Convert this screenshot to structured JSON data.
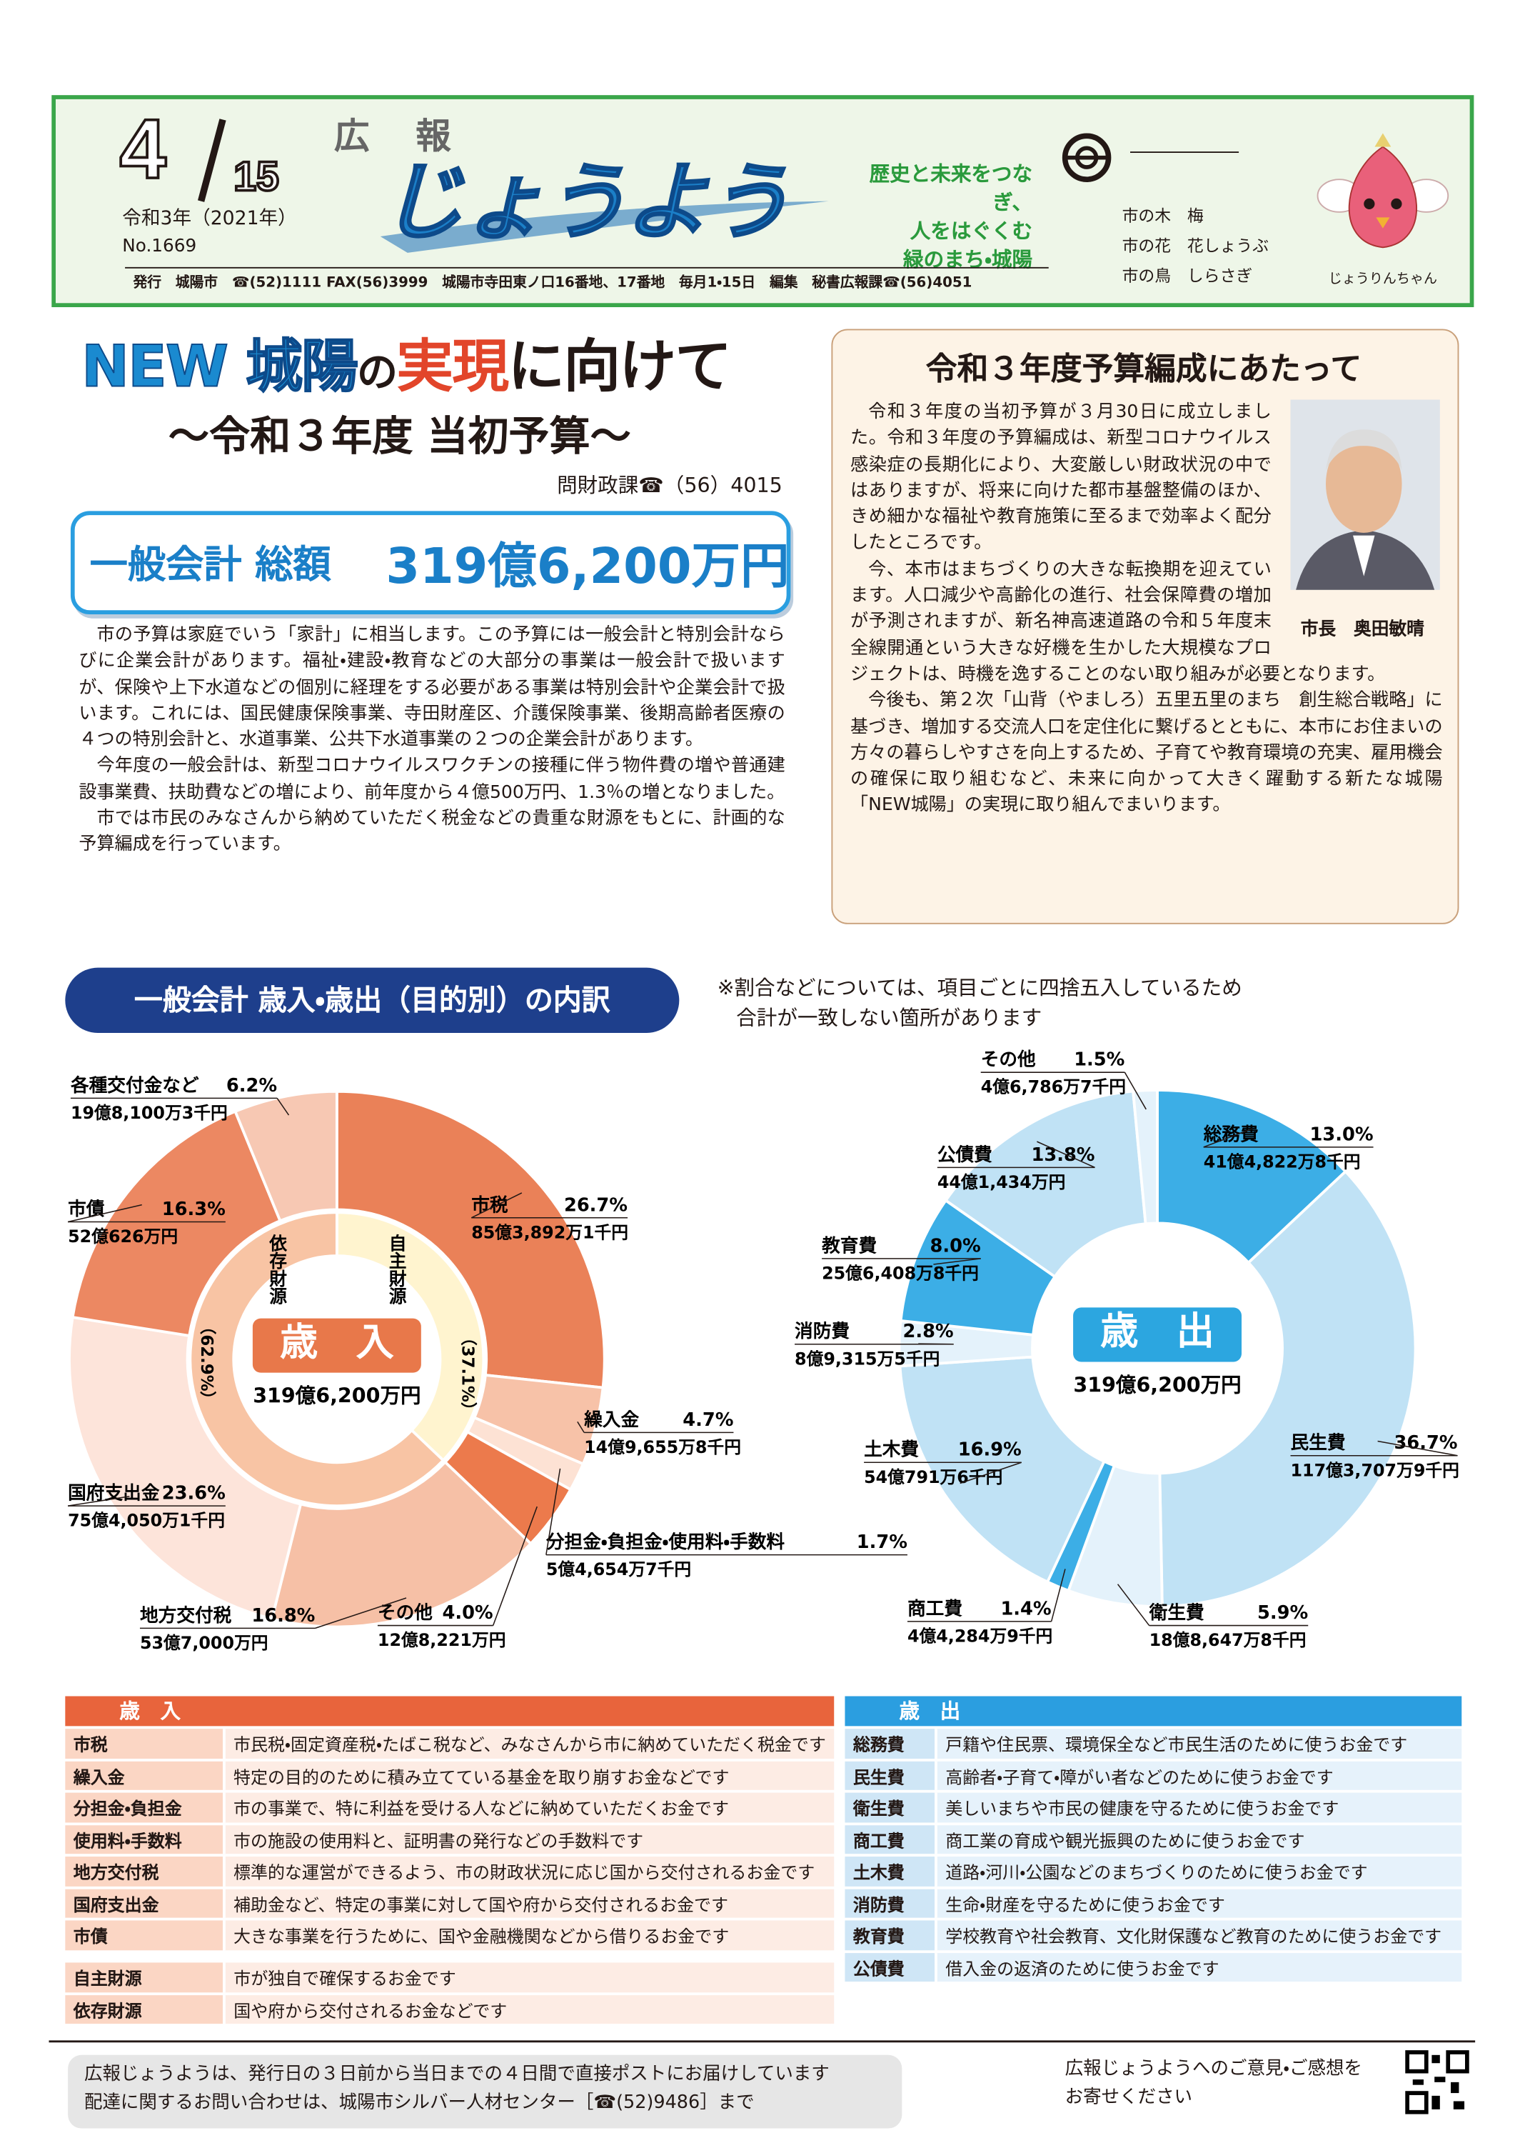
{
  "header": {
    "issue_month": "4",
    "issue_day": "15",
    "era_date": "令和3年（2021年）",
    "number": "No.1669",
    "kouhou": "広　報",
    "name": "じょうよう",
    "slogan": [
      "歴史と未来をつなぎ、",
      "人をはぐくむ",
      "緑のまち・城陽"
    ],
    "city_symbols": [
      "市の木　梅",
      "市の花　花しょうぶ",
      "市の鳥　しらさぎ"
    ],
    "mascot": "じょうりんちゃん",
    "publisher": "発行　城陽市　☎(52)1111 FAX(56)3999　城陽市寺田東ノ口16番地、17番地　毎月1・15日　編集　秘書広報課☎(56)4051"
  },
  "article": {
    "title_parts": [
      "NEW 城陽",
      "の",
      "実現",
      "に向けて"
    ],
    "subtitle": "～令和３年度 当初予算～",
    "contact": "問財政課☎（56）4015",
    "total_label": "一般会計 総額",
    "total_amount": "319億6,200万円",
    "paragraphs": [
      "市の予算は家庭でいう「家計」に相当します。この予算には一般会計と特別会計ならびに企業会計があります。福祉・建設・教育などの大部分の事業は一般会計で扱いますが、保険や上下水道などの個別に経理をする必要がある事業は特別会計や企業会計で扱います。これには、国民健康保険事業、寺田財産区、介護保険事業、後期高齢者医療の４つの特別会計と、水道事業、公共下水道事業の２つの企業会計があります。",
      "今年度の一般会計は、新型コロナウイルスワクチンの接種に伴う物件費の増や普通建設事業費、扶助費などの増により、前年度から４億500万円、1.3％の増となりました。",
      "市では市民のみなさんから納めていただく税金などの貴重な財源をもとに、計画的な予算編成を行っています。"
    ]
  },
  "message": {
    "title": "令和３年度予算編成にあたって",
    "mayor": "市長　奥田敏晴",
    "paragraphs": [
      "令和３年度の当初予算が３月30日に成立しました。令和３年度の予算編成は、新型コロナウイルス感染症の長期化により、大変厳しい財政状況の中ではありますが、将来に向けた都市基盤整備のほか、きめ細かな福祉や教育施策に至るまで効率よく配分したところです。",
      "今、本市はまちづくりの大きな転換期を迎えています。人口減少や高齢化の進行、社会保障費の増加が予測されますが、新名神高速道路の令和５年度末全線開通という大きな好機を生かした大規模なプロジェクトは、時機を逸することのない取り組みが必要となります。",
      "今後も、第２次「山背（やましろ）五里五里のまち　創生総合戦略」に基づき、増加する交流人口を定住化に繋げるとともに、本市にお住まいの方々の暮らしやすさを向上するため、子育てや教育環境の充実、雇用機会の確保に取り組むなど、未来に向かって大きく躍動する新たな城陽「NEW城陽」の実現に取り組んでまいります。"
    ]
  },
  "breakdown": {
    "heading": "一般会計 歳入・歳出（目的別）の内訳",
    "note": [
      "※割合などについては、項目ごとに四捨五入しているため",
      "合計が一致しない箇所があります"
    ]
  },
  "chart_data": [
    {
      "type": "donut",
      "center_label": "歳　入",
      "center_amount": "319億6,200万円",
      "categories": [
        "市税",
        "繰入金",
        "分担金・負担金・使用料・手数料",
        "その他",
        "地方交付税",
        "国府支出金",
        "市債",
        "各種交付金など"
      ],
      "values": [
        26.7,
        4.7,
        1.7,
        4.0,
        16.8,
        23.6,
        16.3,
        6.2
      ],
      "value_labels": [
        "26.7%",
        "4.7%",
        "1.7%",
        "4.0%",
        "16.8%",
        "23.6%",
        "16.3%",
        "6.2%"
      ],
      "amounts": [
        "85億3,892万1千円",
        "14億9,655万8千円",
        "5億4,654万7千円",
        "12億8,221万円",
        "53億7,000万円",
        "75億4,050万1千円",
        "52億626万円",
        "19億8,100万3千円"
      ],
      "colors": [
        "#ea8158",
        "#f7c2a8",
        "#fde2d4",
        "#ec7a4c",
        "#f6c0a6",
        "#fde4da",
        "#ec8862",
        "#f7c8b3"
      ],
      "inner_ring": {
        "categories": [
          "自主財源",
          "依存財源"
        ],
        "values": [
          37.1,
          62.9
        ],
        "value_labels": [
          "（37.1%）",
          "（62.9%）"
        ],
        "colors": [
          "#fff4cf",
          "#f8c4a4"
        ]
      }
    },
    {
      "type": "donut",
      "center_label": "歳　出",
      "center_amount": "319億6,200万円",
      "categories": [
        "総務費",
        "民生費",
        "衛生費",
        "商工費",
        "土木費",
        "消防費",
        "教育費",
        "公債費",
        "その他"
      ],
      "values": [
        13.0,
        36.7,
        5.9,
        1.4,
        16.9,
        2.8,
        8.0,
        13.8,
        1.5
      ],
      "value_labels": [
        "13.0%",
        "36.7%",
        "5.9%",
        "1.4%",
        "16.9%",
        "2.8%",
        "8.0%",
        "13.8%",
        "1.5%"
      ],
      "amounts": [
        "41億4,822万8千円",
        "117億3,707万9千円",
        "18億8,647万8千円",
        "4億4,284万9千円",
        "54億791万6千円",
        "8億9,315万5千円",
        "25億6,408万8千円",
        "44億1,434万円",
        "4億6,786万7千円"
      ],
      "colors": [
        "#3caee6",
        "#c0e2f5",
        "#e4f2fb",
        "#3caee6",
        "#c0e2f5",
        "#e4f2fb",
        "#3caee6",
        "#c0e2f5",
        "#e4f2fb"
      ]
    }
  ],
  "revenue_glossary": {
    "heading": "歳　入",
    "rows": [
      [
        "市税",
        "市民税・固定資産税・たばこ税など、みなさんから市に納めていただく税金です"
      ],
      [
        "繰入金",
        "特定の目的のために積み立てている基金を取り崩すお金などです"
      ],
      [
        "分担金・負担金",
        "市の事業で、特に利益を受ける人などに納めていただくお金です"
      ],
      [
        "使用料・手数料",
        "市の施設の使用料と、証明書の発行などの手数料です"
      ],
      [
        "地方交付税",
        "標準的な運営ができるよう、市の財政状況に応じ国から交付されるお金です"
      ],
      [
        "国府支出金",
        "補助金など、特定の事業に対して国や府から交付されるお金です"
      ],
      [
        "市債",
        "大きな事業を行うために、国や金融機関などから借りるお金です"
      ]
    ],
    "source_rows": [
      [
        "自主財源",
        "市が独自で確保するお金です"
      ],
      [
        "依存財源",
        "国や府から交付されるお金などです"
      ]
    ]
  },
  "expenditure_glossary": {
    "heading": "歳　出",
    "rows": [
      [
        "総務費",
        "戸籍や住民票、環境保全など市民生活のために使うお金です"
      ],
      [
        "民生費",
        "高齢者・子育て・障がい者などのために使うお金です"
      ],
      [
        "衛生費",
        "美しいまちや市民の健康を守るために使うお金です"
      ],
      [
        "商工費",
        "商工業の育成や観光振興のために使うお金です"
      ],
      [
        "土木費",
        "道路・河川・公園などのまちづくりのために使うお金です"
      ],
      [
        "消防費",
        "生命・財産を守るために使うお金です"
      ],
      [
        "教育費",
        "学校教育や社会教育、文化財保護など教育のために使うお金です"
      ],
      [
        "公債費",
        "借入金の返済のために使うお金です"
      ]
    ]
  },
  "footer": {
    "delivery": [
      "広報じょうようは、発行日の３日前から当日までの４日間で直接ポストにお届けしています",
      "配達に関するお問い合わせは、城陽市シルバー人材センター［☎(52)9486］まで"
    ],
    "feedback": [
      "広報じょうようへのご意見・ご感想を",
      "お寄せください"
    ]
  }
}
